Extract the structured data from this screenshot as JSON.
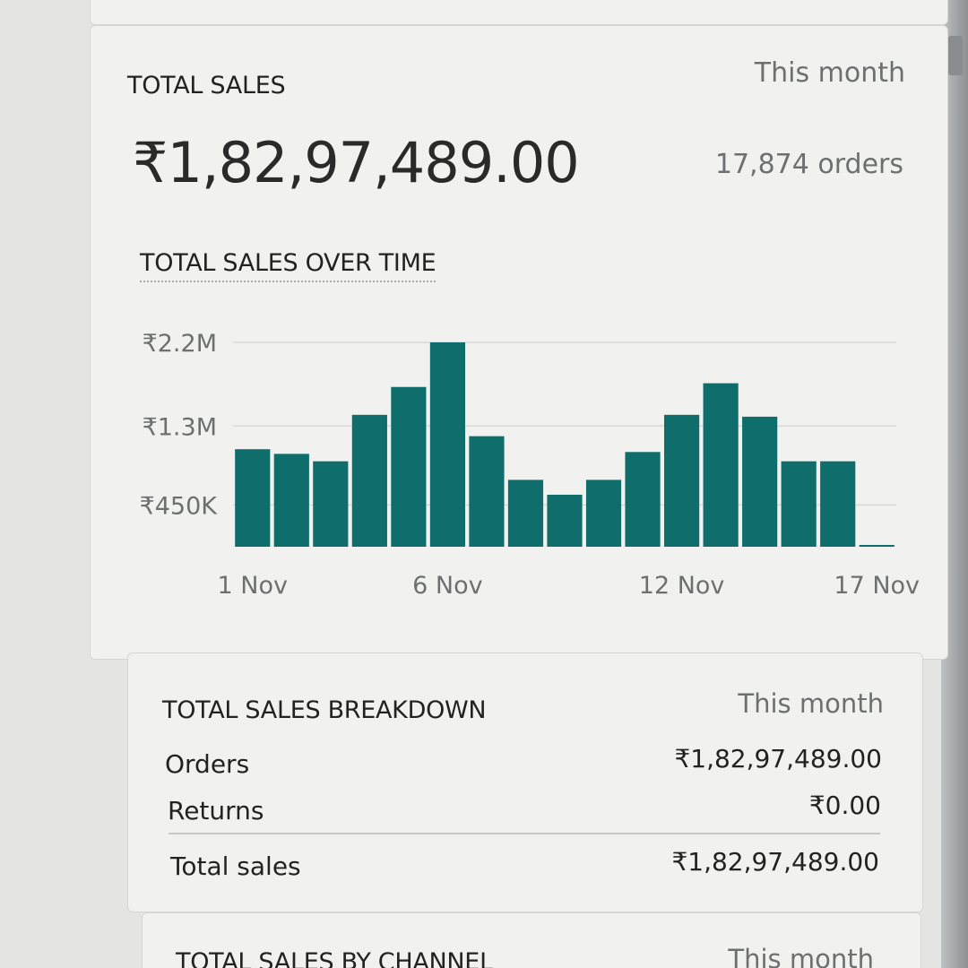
{
  "summary": {
    "title": "TOTAL SALES",
    "period": "This month",
    "total": "₹1,82,97,489.00",
    "orders": "17,874 orders"
  },
  "chart": {
    "title": "TOTAL SALES OVER TIME"
  },
  "chart_data": {
    "type": "bar",
    "title": "TOTAL SALES OVER TIME",
    "xlabel": "",
    "ylabel": "",
    "y_ticks": [
      {
        "value": 2200000,
        "label": "₹2.2M"
      },
      {
        "value": 1300000,
        "label": "₹1.3M"
      },
      {
        "value": 450000,
        "label": "₹450K"
      }
    ],
    "x_ticks": [
      {
        "index": 0,
        "label": "1 Nov"
      },
      {
        "index": 5,
        "label": "6 Nov"
      },
      {
        "index": 11,
        "label": "12 Nov"
      },
      {
        "index": 16,
        "label": "17 Nov"
      }
    ],
    "categories": [
      "1 Nov",
      "2 Nov",
      "3 Nov",
      "4 Nov",
      "5 Nov",
      "6 Nov",
      "7 Nov",
      "8 Nov",
      "9 Nov",
      "10 Nov",
      "11 Nov",
      "12 Nov",
      "13 Nov",
      "14 Nov",
      "15 Nov",
      "16 Nov",
      "17 Nov"
    ],
    "values": [
      1050000,
      1000000,
      920000,
      1420000,
      1720000,
      2200000,
      1190000,
      720000,
      560000,
      720000,
      1020000,
      1420000,
      1760000,
      1400000,
      920000,
      920000,
      10000
    ],
    "ylim": [
      0,
      2200000
    ],
    "grid": true,
    "colors": {
      "bar": "#0f6d6c",
      "grid": "#d9dad7"
    }
  },
  "breakdown": {
    "title": "TOTAL SALES BREAKDOWN",
    "period": "This month",
    "rows": [
      {
        "label": "Orders",
        "value": "₹1,82,97,489.00"
      },
      {
        "label": "Returns",
        "value": "₹0.00"
      }
    ],
    "total_label": "Total sales",
    "total_value": "₹1,82,97,489.00"
  },
  "channel": {
    "title": "TOTAL SALES BY CHANNEL",
    "period": "This month"
  }
}
